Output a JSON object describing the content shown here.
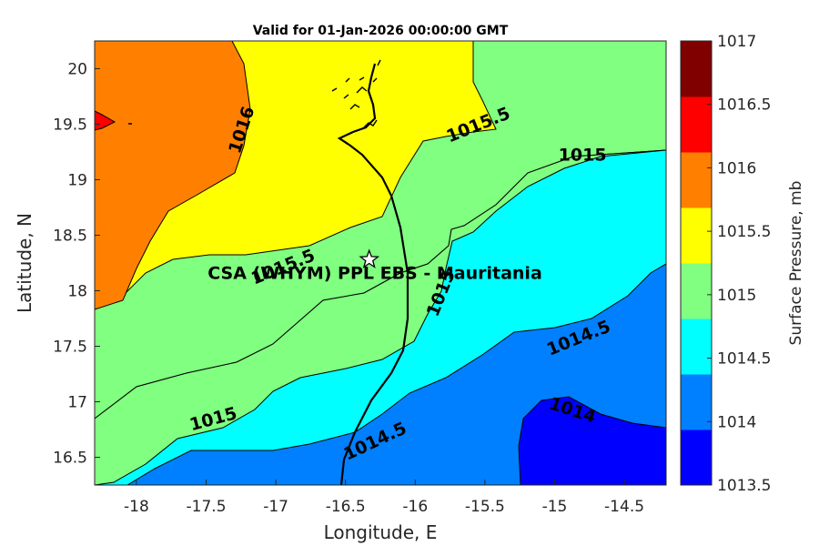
{
  "title": "Valid for 01-Jan-2026 00:00:00 GMT",
  "xlabel": "Longitude, E",
  "ylabel": "Latitude, N",
  "colorbar_label": "Surface Pressure, mb",
  "site_label": "CSA (WHYM) PPL EBS - Mauritania",
  "site": {
    "lon": -16.33,
    "lat": 18.28
  },
  "x_ticks": [
    "-18",
    "-17.5",
    "-17",
    "-16.5",
    "-16",
    "-15.5",
    "-15",
    "-14.5"
  ],
  "y_ticks": [
    "16.5",
    "17",
    "17.5",
    "18",
    "18.5",
    "19",
    "19.5",
    "20"
  ],
  "colorbar_ticks": [
    "1013.5",
    "1014",
    "1014.5",
    "1015",
    "1015.5",
    "1016",
    "1016.5",
    "1017"
  ],
  "contour_labels": [
    {
      "text": "1016",
      "lon": -17.25,
      "lat": 19.45
    },
    {
      "text": "1015.5",
      "lon": -15.55,
      "lat": 19.5
    },
    {
      "text": "1015",
      "lon": -14.8,
      "lat": 19.23
    },
    {
      "text": "1015.5",
      "lon": -16.95,
      "lat": 18.22
    },
    {
      "text": "1015",
      "lon": -15.82,
      "lat": 17.98
    },
    {
      "text": "1014.5",
      "lon": -14.83,
      "lat": 17.58
    },
    {
      "text": "1014",
      "lon": -14.87,
      "lat": 16.93
    },
    {
      "text": "1015",
      "lon": -17.45,
      "lat": 16.85
    },
    {
      "text": "1014.5",
      "lon": -16.29,
      "lat": 16.65
    }
  ],
  "colors": {
    "1013.5-1014": "#0000ff",
    "1014-1014.5": "#0080ff",
    "1014.5-1015": "#00ffff",
    "1015-1015.5": "#80ff80",
    "1015.5-1016": "#ffff00",
    "1016-1016.5": "#ff8000",
    "1016.5-1017": "#ff0000",
    "1017": "#800000"
  }
}
